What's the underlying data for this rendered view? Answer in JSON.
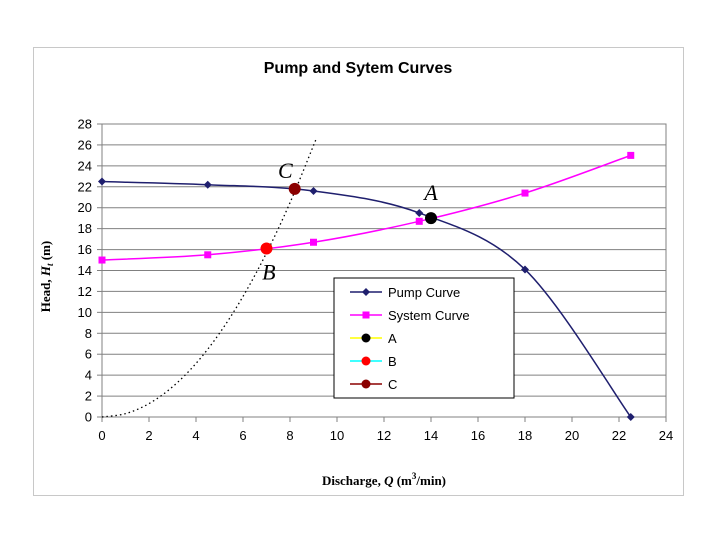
{
  "chart_data": {
    "type": "line",
    "title": "Pump and Sytem Curves",
    "xlabel": {
      "prefix": "Discharge, ",
      "var": "Q",
      "unit_open": " (m",
      "sup": "3",
      "unit_close": "/min)"
    },
    "ylabel": {
      "prefix": "Head, ",
      "var": "H",
      "sub": "t",
      "unit": " (m)"
    },
    "xlim": [
      0,
      24
    ],
    "ylim": [
      0,
      28
    ],
    "xticks": [
      0,
      2,
      4,
      6,
      8,
      10,
      12,
      14,
      16,
      18,
      20,
      22,
      24
    ],
    "yticks": [
      0,
      2,
      4,
      6,
      8,
      10,
      12,
      14,
      16,
      18,
      20,
      22,
      24,
      26,
      28
    ],
    "grid": "horizontal",
    "series": [
      {
        "name": "Pump Curve",
        "color": "#1f1f6e",
        "marker": "diamond",
        "x": [
          0,
          4.5,
          9,
          13.5,
          18,
          22.5
        ],
        "y": [
          22.5,
          22.2,
          21.6,
          19.5,
          14.1,
          0
        ]
      },
      {
        "name": "System Curve",
        "color": "#ff00ff",
        "marker": "square",
        "x": [
          0,
          4.5,
          9,
          13.5,
          18,
          22.5
        ],
        "y": [
          15.0,
          15.5,
          16.7,
          18.7,
          21.4,
          25.0
        ]
      },
      {
        "name": "A",
        "color": "#000000",
        "marker": "circle",
        "x": [
          14.0
        ],
        "y": [
          19.0
        ],
        "legend_line": "#ffff00"
      },
      {
        "name": "B",
        "color": "#ff0000",
        "marker": "circle",
        "x": [
          7.0
        ],
        "y": [
          16.1
        ],
        "legend_line": "#00ffff"
      },
      {
        "name": "C",
        "color": "#8b0000",
        "marker": "circle",
        "x": [
          8.2
        ],
        "y": [
          21.8
        ],
        "legend_line": "#8b0000"
      }
    ],
    "dotted_curve": {
      "x": [
        0,
        1,
        2,
        3,
        4,
        5,
        6,
        7,
        8,
        9.1
      ],
      "y": [
        0,
        0.32,
        1.28,
        2.88,
        5.12,
        8.0,
        11.52,
        15.68,
        20.48,
        26.5
      ]
    },
    "annotations": [
      {
        "text": "A",
        "x": 14.0,
        "y": 21.5
      },
      {
        "text": "B",
        "x": 7.1,
        "y": 13.9
      },
      {
        "text": "C",
        "x": 7.8,
        "y": 23.6
      }
    ],
    "legend_position": "center-right"
  }
}
